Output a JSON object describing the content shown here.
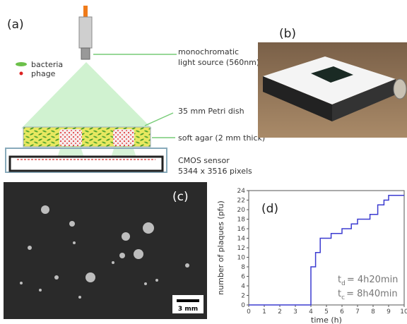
{
  "panel_a": {
    "label": "(a)",
    "legend": [
      "bacteria",
      "phage"
    ],
    "callouts": [
      [
        "monochromatic",
        "light source (560nm)"
      ],
      [
        "35 mm Petri dish"
      ],
      [
        "soft agar (2 mm thick)"
      ],
      [
        "CMOS sensor",
        "5344 x 3516 pixels"
      ]
    ]
  },
  "panel_b": {
    "label": "(b)"
  },
  "panel_c": {
    "label": "(c)",
    "scale_bar": "3 mm"
  },
  "chart_data": {
    "type": "step",
    "label": "(d)",
    "x_label": "time (h)",
    "y_label": "number of plaques (pfu)",
    "x": [
      0,
      4.0,
      4.3,
      4.6,
      5.3,
      6.0,
      6.6,
      7.0,
      7.8,
      8.3,
      8.7,
      9.0,
      10
    ],
    "series": [
      {
        "name": "plaques",
        "color": "#3b3bd0",
        "values": [
          0,
          8,
          11,
          14,
          15,
          16,
          17,
          18,
          19,
          21,
          22,
          23,
          23
        ]
      }
    ],
    "xlim": [
      0,
      10
    ],
    "xticks": [
      0,
      1,
      2,
      3,
      4,
      5,
      6,
      7,
      8,
      9,
      10
    ],
    "ylim": [
      0,
      24
    ],
    "yticks": [
      0,
      2,
      4,
      6,
      8,
      10,
      12,
      14,
      16,
      18,
      20,
      22,
      24
    ],
    "annotations": [
      {
        "symbol": "t",
        "sub": "d",
        "text": "= 4h20min"
      },
      {
        "symbol": "t",
        "sub": "c",
        "text": "= 8h40min"
      }
    ]
  }
}
